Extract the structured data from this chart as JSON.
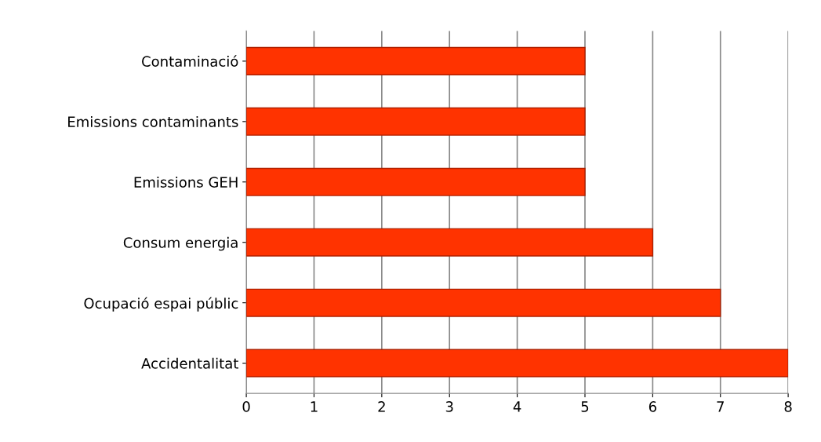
{
  "chart_data": {
    "type": "bar",
    "orientation": "horizontal",
    "categories": [
      "Contaminació",
      "Emissions contaminants",
      "Emissions GEH",
      "Consum energia",
      "Ocupació espai públic",
      "Accidentalitat"
    ],
    "values": [
      5,
      5,
      5,
      6,
      7,
      8
    ],
    "color": "#ff3300",
    "xlim": [
      0,
      8
    ],
    "xticks": [
      0,
      1,
      2,
      3,
      4,
      5,
      6,
      7,
      8
    ],
    "grid": "x",
    "legend": false
  }
}
